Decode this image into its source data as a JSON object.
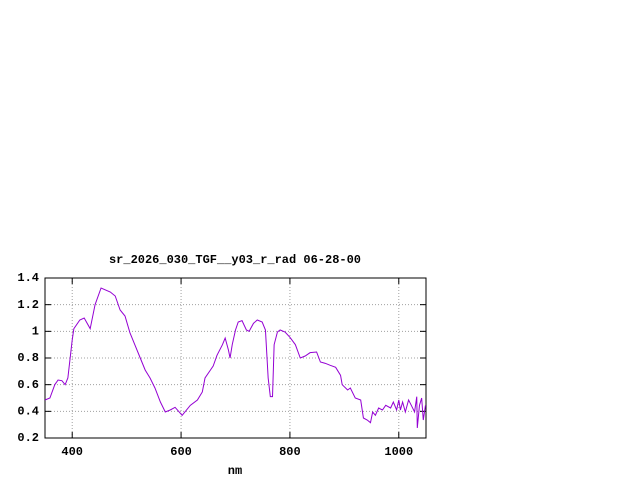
{
  "chart_data": {
    "type": "line",
    "title": "sr_2026_030_TGF__y03_r_rad 06-28-00",
    "x_label": "nm",
    "x": [
      350,
      359,
      368,
      374,
      381,
      387,
      392,
      400,
      403,
      414,
      422,
      433,
      442,
      453,
      470,
      479,
      488,
      497,
      506,
      515,
      525,
      534,
      543,
      552,
      562,
      571,
      580,
      589,
      602,
      617,
      630,
      639,
      644,
      654,
      659,
      666,
      676,
      681,
      687,
      690,
      694,
      700,
      705,
      712,
      720,
      725,
      733,
      740,
      749,
      755,
      760,
      764,
      768,
      771,
      777,
      782,
      791,
      800,
      810,
      819,
      828,
      837,
      849,
      856,
      865,
      874,
      884,
      893,
      896,
      906,
      911,
      920,
      930,
      935,
      942,
      948,
      952,
      957,
      963,
      970,
      976,
      985,
      990,
      996,
      1000,
      1003,
      1007,
      1012,
      1018,
      1023,
      1029,
      1033,
      1034,
      1038,
      1042,
      1045,
      1049
    ],
    "series": [
      {
        "name": "sr_2026_030_TGF__y03_r_rad",
        "color": "#9400d3",
        "values": [
          0.485,
          0.5,
          0.6,
          0.635,
          0.63,
          0.6,
          0.65,
          0.935,
          1.02,
          1.085,
          1.1,
          1.02,
          1.2,
          1.325,
          1.295,
          1.265,
          1.16,
          1.115,
          0.99,
          0.9,
          0.8,
          0.71,
          0.65,
          0.575,
          0.47,
          0.395,
          0.41,
          0.43,
          0.37,
          0.445,
          0.485,
          0.545,
          0.65,
          0.71,
          0.74,
          0.82,
          0.9,
          0.95,
          0.86,
          0.8,
          0.9,
          1.01,
          1.07,
          1.08,
          1.01,
          1.0,
          1.06,
          1.085,
          1.07,
          1.01,
          0.65,
          0.51,
          0.51,
          0.9,
          0.995,
          1.01,
          0.995,
          0.955,
          0.9,
          0.8,
          0.815,
          0.84,
          0.845,
          0.77,
          0.76,
          0.745,
          0.73,
          0.67,
          0.6,
          0.56,
          0.575,
          0.5,
          0.485,
          0.35,
          0.335,
          0.315,
          0.395,
          0.37,
          0.425,
          0.41,
          0.445,
          0.425,
          0.47,
          0.41,
          0.485,
          0.41,
          0.47,
          0.395,
          0.485,
          0.445,
          0.395,
          0.51,
          0.275,
          0.445,
          0.5,
          0.335,
          0.445
        ]
      }
    ],
    "xlim": [
      350,
      1050
    ],
    "xticks": [
      400,
      600,
      800,
      1000
    ],
    "ylim": [
      0.2,
      1.4
    ],
    "yticks": [
      0.2,
      0.4,
      0.6,
      0.8,
      1,
      1.2,
      1.4
    ],
    "grid": true
  }
}
